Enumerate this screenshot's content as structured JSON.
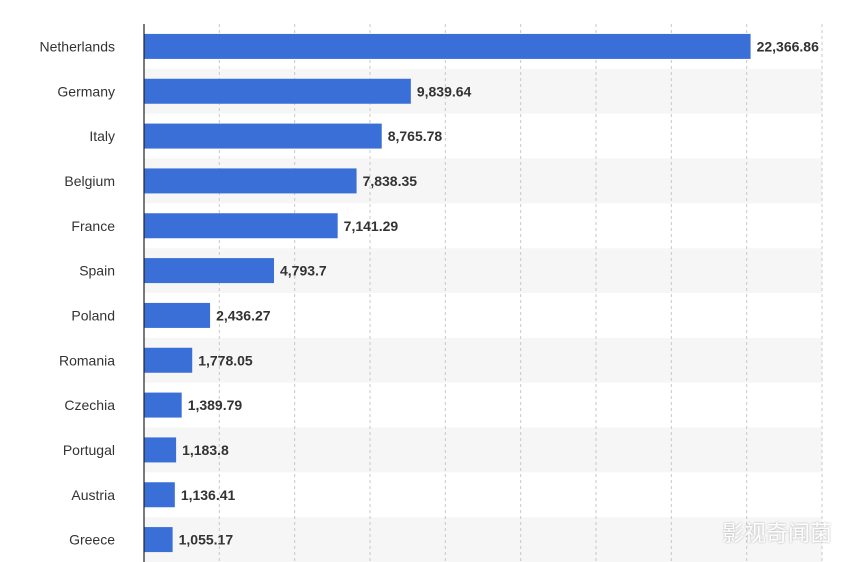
{
  "chart_data": {
    "type": "bar",
    "orientation": "horizontal",
    "categories": [
      "Netherlands",
      "Germany",
      "Italy",
      "Belgium",
      "France",
      "Spain",
      "Poland",
      "Romania",
      "Czechia",
      "Portugal",
      "Austria",
      "Greece"
    ],
    "values": [
      22366.86,
      9839.64,
      8765.78,
      7838.35,
      7141.29,
      4793.7,
      2436.27,
      1778.05,
      1389.79,
      1183.8,
      1136.41,
      1055.17
    ],
    "value_labels": [
      "22,366.86",
      "9,839.64",
      "8,765.78",
      "7,838.35",
      "7,141.29",
      "4,793.7",
      "2,436.27",
      "1,778.05",
      "1,389.79",
      "1,183.8",
      "1,136.41",
      "1,055.17"
    ],
    "xlim": [
      0,
      25000
    ],
    "grid": true,
    "bar_color": "#3a6fd8",
    "title": "",
    "xlabel": "",
    "ylabel": ""
  },
  "watermark": "影视奇闻菌"
}
